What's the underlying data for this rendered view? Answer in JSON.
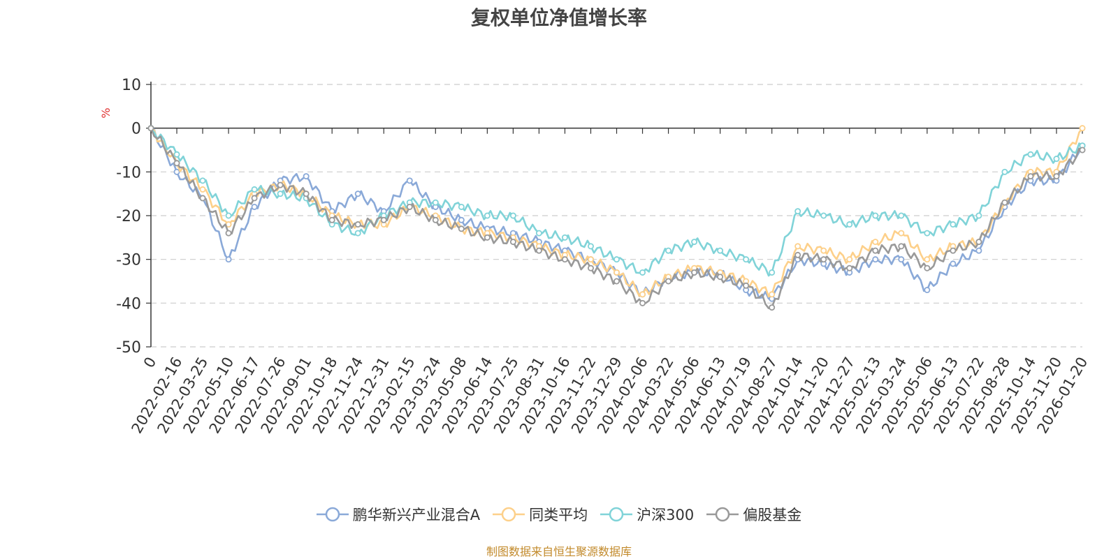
{
  "chart_data": {
    "type": "line",
    "title": "复权单位净值增长率",
    "ylabel": "%",
    "xlabel": "",
    "ylim": [
      -50,
      10
    ],
    "yticks": [
      10,
      0,
      -10,
      -20,
      -30,
      -40,
      -50
    ],
    "grid": true,
    "legend_position": "bottom",
    "categories": [
      "0",
      "2022-02-16",
      "2022-03-25",
      "2022-05-10",
      "2022-06-17",
      "2022-07-26",
      "2022-09-01",
      "2022-10-18",
      "2022-11-24",
      "2022-12-31",
      "2023-02-15",
      "2023-03-24",
      "2023-05-08",
      "2023-06-14",
      "2023-07-25",
      "2023-08-31",
      "2023-10-16",
      "2023-11-22",
      "2023-12-29",
      "2024-02-06",
      "2024-03-22",
      "2024-05-06",
      "2024-06-13",
      "2024-07-19",
      "2024-08-27",
      "2024-10-14",
      "2024-11-20",
      "2024-12-27",
      "2025-02-13",
      "2025-03-24",
      "2025-05-06",
      "2025-06-13",
      "2025-07-22",
      "2025-08-28",
      "2025-10-14",
      "2025-11-20",
      "2026-01-20"
    ],
    "series": [
      {
        "name": "鹏华新兴产业混合A",
        "color": "#8aa9d8",
        "values": [
          0,
          -10,
          -16,
          -30,
          -18,
          -12,
          -11,
          -19,
          -15,
          -19,
          -12,
          -18,
          -21,
          -23,
          -24,
          -26,
          -28,
          -30,
          -33,
          -38,
          -34,
          -33,
          -33,
          -37,
          -39,
          -30,
          -31,
          -33,
          -30,
          -30,
          -37,
          -31,
          -28,
          -18,
          -12,
          -12,
          -4
        ]
      },
      {
        "name": "同类平均",
        "color": "#fdd08a",
        "values": [
          0,
          -8,
          -14,
          -22,
          -15,
          -13,
          -15,
          -20,
          -22,
          -22,
          -18,
          -20,
          -23,
          -24,
          -25,
          -27,
          -29,
          -30,
          -33,
          -38,
          -34,
          -32,
          -33,
          -35,
          -38,
          -27,
          -28,
          -30,
          -26,
          -24,
          -30,
          -27,
          -26,
          -17,
          -10,
          -10,
          0
        ]
      },
      {
        "name": "沪深300",
        "color": "#80d3d8",
        "values": [
          0,
          -6,
          -12,
          -20,
          -14,
          -15,
          -16,
          -22,
          -24,
          -20,
          -17,
          -17,
          -18,
          -20,
          -20,
          -24,
          -25,
          -27,
          -30,
          -33,
          -28,
          -26,
          -28,
          -30,
          -33,
          -19,
          -20,
          -22,
          -20,
          -20,
          -24,
          -22,
          -20,
          -10,
          -6,
          -7,
          -4
        ]
      },
      {
        "name": "偏股基金",
        "color": "#999999",
        "values": [
          0,
          -8,
          -16,
          -24,
          -16,
          -13,
          -15,
          -21,
          -22,
          -21,
          -18,
          -21,
          -23,
          -25,
          -26,
          -28,
          -30,
          -32,
          -35,
          -40,
          -35,
          -33,
          -34,
          -36,
          -41,
          -29,
          -30,
          -32,
          -28,
          -27,
          -32,
          -28,
          -26,
          -17,
          -11,
          -11,
          -5
        ]
      }
    ]
  },
  "footer": {
    "source": "制图数据来自恒生聚源数据库"
  }
}
